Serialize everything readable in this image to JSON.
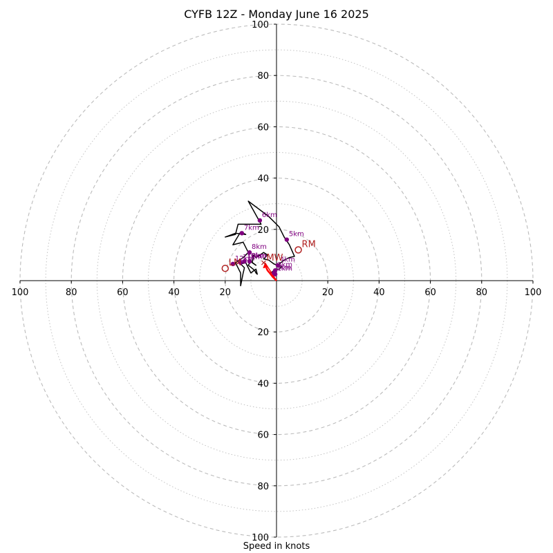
{
  "chart_data": {
    "type": "scatter",
    "title": "CYFB 12Z - Monday June 16 2025",
    "xlabel": "Speed in knots",
    "ylabel": "",
    "subtype": "hodograph",
    "xlim": [
      -100,
      100
    ],
    "ylim": [
      -100,
      100
    ],
    "ring_major_step": 20,
    "ring_minor_step": 10,
    "tick_labels": [
      "100",
      "80",
      "60",
      "40",
      "20"
    ],
    "grid": true,
    "colors": {
      "hodograph": "#000000",
      "low_level": "#ff0000",
      "height_points": "#800080",
      "motion": "#b22222",
      "grid": "#bbbbbb",
      "axes": "#000000"
    },
    "hodograph": [
      {
        "u": 0.0,
        "v": 0.0
      },
      {
        "u": -1.5,
        "v": 1.5
      },
      {
        "u": -2.5,
        "v": 2.8
      },
      {
        "u": -1.0,
        "v": 4.0
      },
      {
        "u": 1.0,
        "v": 4.5
      },
      {
        "u": 2.0,
        "v": 5.5
      },
      {
        "u": 0.5,
        "v": 6.0
      },
      {
        "u": -1.0,
        "v": 6.5
      },
      {
        "u": -3.0,
        "v": 8.0
      },
      {
        "u": -5.0,
        "v": 8.5
      },
      {
        "u": -3.5,
        "v": 10.0
      },
      {
        "u": -5.0,
        "v": 11.0
      },
      {
        "u": -8.0,
        "v": 9.0
      },
      {
        "u": -9.0,
        "v": 10.0
      },
      {
        "u": -9.5,
        "v": 7.0
      },
      {
        "u": -8.0,
        "v": 6.0
      },
      {
        "u": -10.0,
        "v": 7.5
      },
      {
        "u": -11.0,
        "v": 6.0
      },
      {
        "u": -8.5,
        "v": 4.0
      },
      {
        "u": -8.0,
        "v": 3.0
      },
      {
        "u": -7.5,
        "v": 2.5
      },
      {
        "u": -8.0,
        "v": 4.5
      },
      {
        "u": -10.0,
        "v": 3.0
      },
      {
        "u": -12.0,
        "v": 7.0
      },
      {
        "u": -14.0,
        "v": 6.5
      },
      {
        "u": -12.5,
        "v": 5.0
      },
      {
        "u": -13.0,
        "v": 3.0
      },
      {
        "u": -14.0,
        "v": -2.0
      },
      {
        "u": -14.0,
        "v": 3.0
      },
      {
        "u": -16.0,
        "v": 7.0
      },
      {
        "u": -13.0,
        "v": 9.0
      },
      {
        "u": -11.0,
        "v": 11.0
      },
      {
        "u": -13.0,
        "v": 15.0
      },
      {
        "u": -17.0,
        "v": 14.0
      },
      {
        "u": -14.0,
        "v": 19.0
      },
      {
        "u": -12.0,
        "v": 18.0
      },
      {
        "u": -16.0,
        "v": 18.5
      },
      {
        "u": -20.0,
        "v": 17.0
      },
      {
        "u": -16.0,
        "v": 18.0
      },
      {
        "u": -15.0,
        "v": 22.0
      },
      {
        "u": -6.0,
        "v": 22.0
      },
      {
        "u": -11.0,
        "v": 31.0
      },
      {
        "u": -3.0,
        "v": 25.0
      },
      {
        "u": 1.0,
        "v": 21.0
      },
      {
        "u": 3.0,
        "v": 17.0
      },
      {
        "u": 5.0,
        "v": 14.0
      },
      {
        "u": 7.0,
        "v": 9.5
      },
      {
        "u": 5.0,
        "v": 9.0
      },
      {
        "u": 3.0,
        "v": 8.0
      },
      {
        "u": 1.0,
        "v": 6.5
      },
      {
        "u": 0.0,
        "v": 6.0
      }
    ],
    "low_level": [
      {
        "u": 0.0,
        "v": 0.0
      },
      {
        "u": -1.5,
        "v": 1.5
      },
      {
        "u": -2.5,
        "v": 2.8
      },
      {
        "u": -3.5,
        "v": 4.0
      },
      {
        "u": -4.0,
        "v": 5.0
      }
    ],
    "height_points": [
      {
        "label": "1km",
        "u": -0.5,
        "v": 2.5
      },
      {
        "label": "2km",
        "u": -1.0,
        "v": 3.0
      },
      {
        "label": "3km",
        "u": -0.5,
        "v": 4.0
      },
      {
        "label": "4km",
        "u": 0.5,
        "v": 6.0
      },
      {
        "label": "5km",
        "u": 4.0,
        "v": 16.0
      },
      {
        "label": "6km",
        "u": -6.5,
        "v": 23.5
      },
      {
        "label": "7km",
        "u": -13.5,
        "v": 18.5
      },
      {
        "label": "8km",
        "u": -10.5,
        "v": 11.0
      },
      {
        "label": "9km",
        "u": -10.5,
        "v": 7.5
      },
      {
        "label": "10km",
        "u": -12.5,
        "v": 7.5
      },
      {
        "label": "11km",
        "u": -14.0,
        "v": 7.0
      },
      {
        "label": "12km",
        "u": -17.0,
        "v": 6.5
      }
    ],
    "storm_motion": [
      {
        "label": "RM",
        "u": 8.5,
        "v": 12.0,
        "marker": "circle"
      },
      {
        "label": "LM",
        "u": -20.0,
        "v": 4.8,
        "marker": "circle"
      },
      {
        "label": "MW",
        "u": -5.0,
        "v": 7.0,
        "marker": "x"
      }
    ],
    "bunkers_vector": {
      "from": {
        "u": -4.5,
        "v": 7.0
      },
      "to": {
        "u": 0.0,
        "v": 0.0
      }
    }
  }
}
